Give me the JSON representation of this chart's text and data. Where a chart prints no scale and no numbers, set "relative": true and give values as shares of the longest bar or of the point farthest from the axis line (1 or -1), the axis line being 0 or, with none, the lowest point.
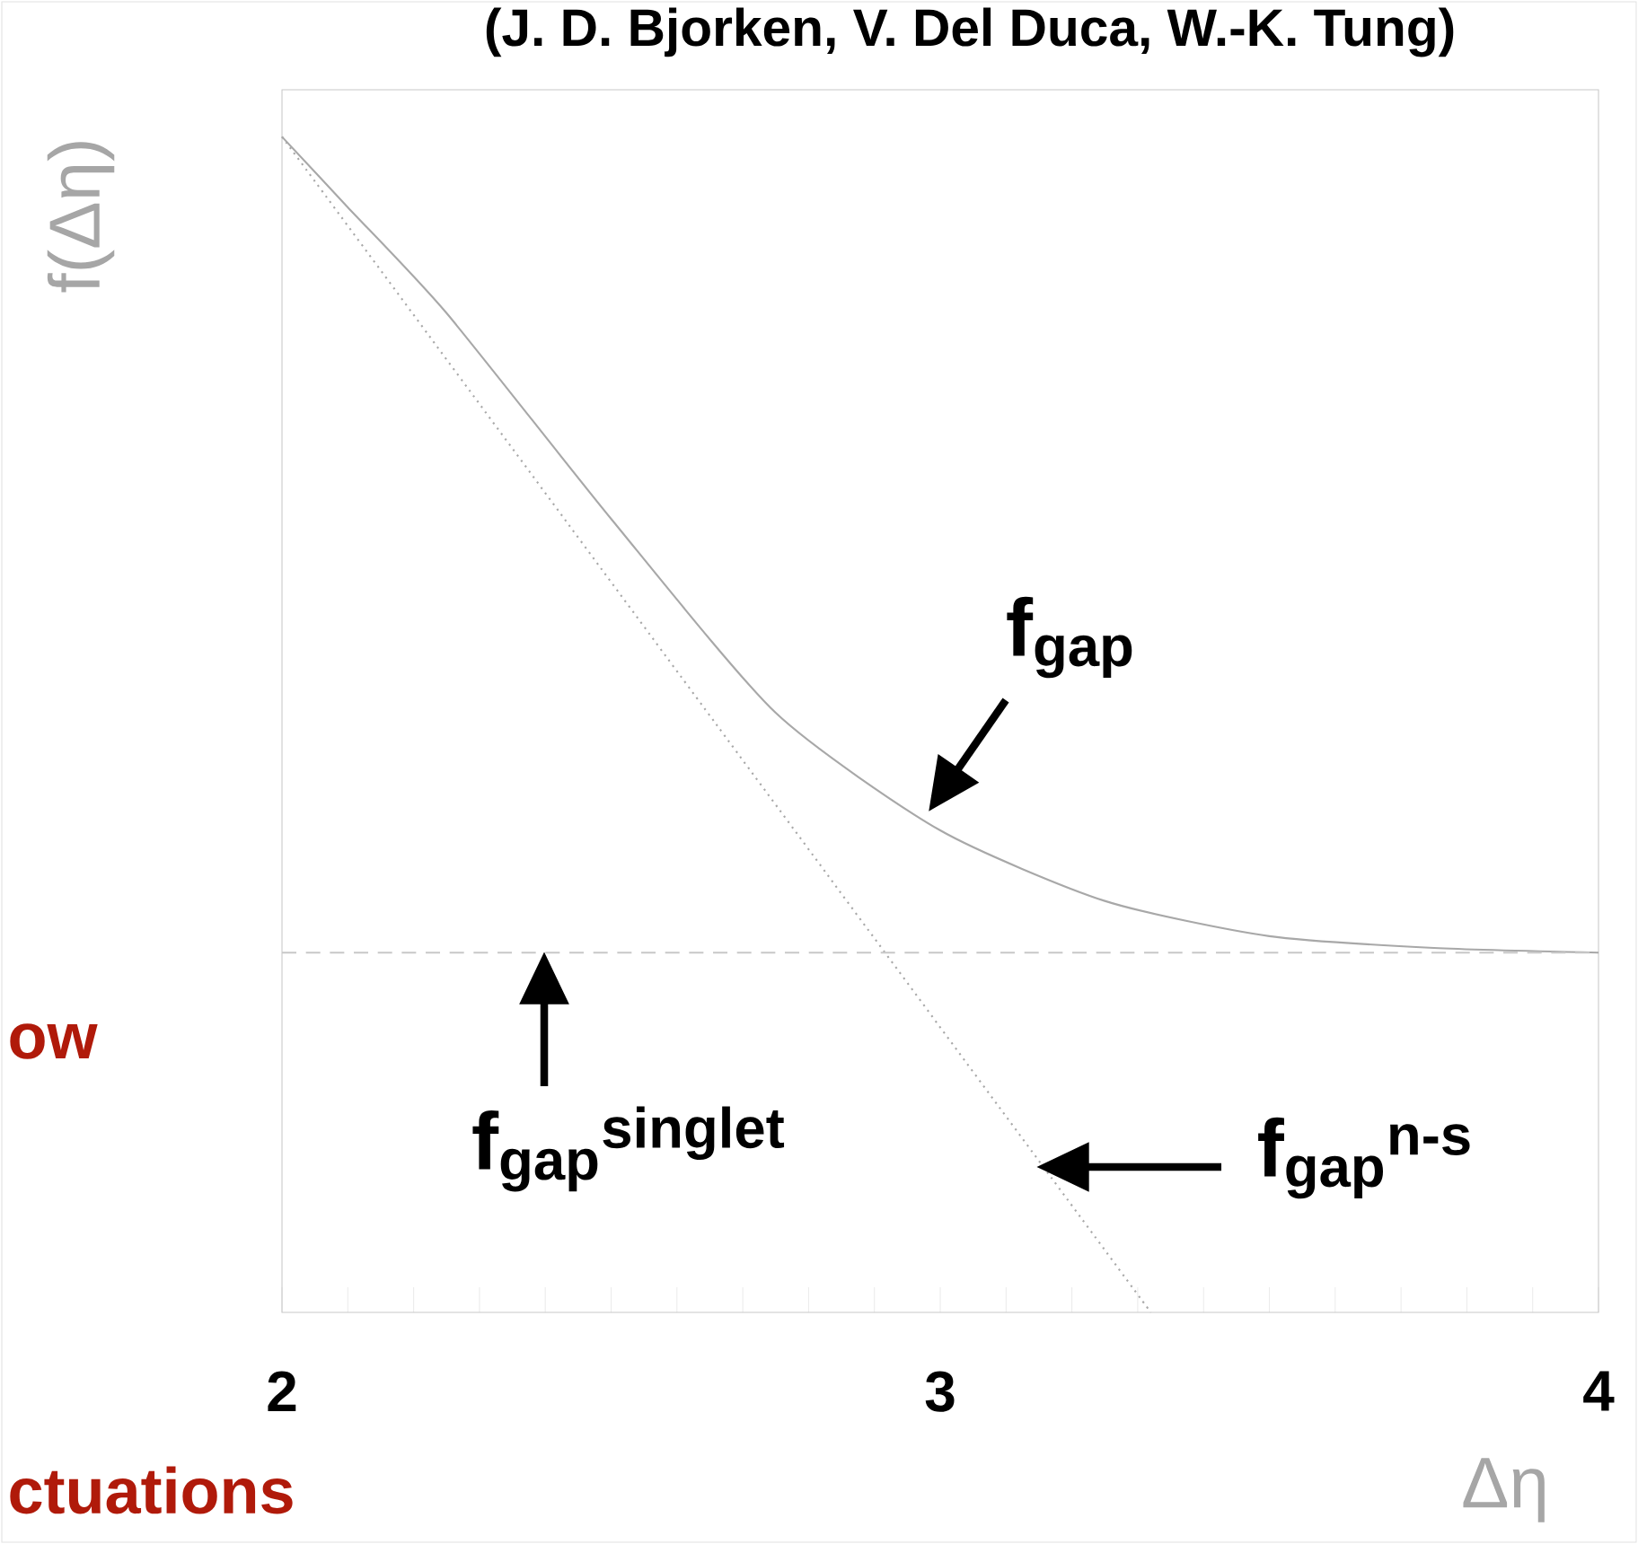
{
  "chart_data": {
    "type": "line",
    "relative": true,
    "title": "(J. D. Bjorken, V. Del Duca, W.-K. Tung)",
    "xlabel": "Δη",
    "ylabel": "f(Δη)",
    "xlim": [
      2,
      4
    ],
    "xticks": [
      2,
      3,
      4
    ],
    "series": [
      {
        "color": "#a8a8a8",
        "line_style": "solid",
        "x": [
          2,
          2.1,
          2.25,
          2.5,
          2.75,
          3,
          3.25,
          3.5,
          3.75,
          4
        ],
        "values": [
          1.0,
          0.94,
          0.85,
          0.675,
          0.51,
          0.41,
          0.35,
          0.32,
          0.31,
          0.306
        ]
      },
      {
        "color": "#a8a8a8",
        "line_style": "dotted",
        "x": [
          2,
          2.66,
          3.32
        ],
        "values": [
          1.0,
          0.5,
          0
        ]
      }
    ],
    "ref_lines": [
      {
        "axis": "y",
        "value": 0.306,
        "color": "#c8c8c8",
        "line_style": "dashed"
      }
    ],
    "annotations": [
      "f$_{gap}$",
      "f$_{gap}$$^{singlet}$",
      "f$_{gap}$$^{n-s}$",
      "ow",
      "ctuations"
    ]
  }
}
